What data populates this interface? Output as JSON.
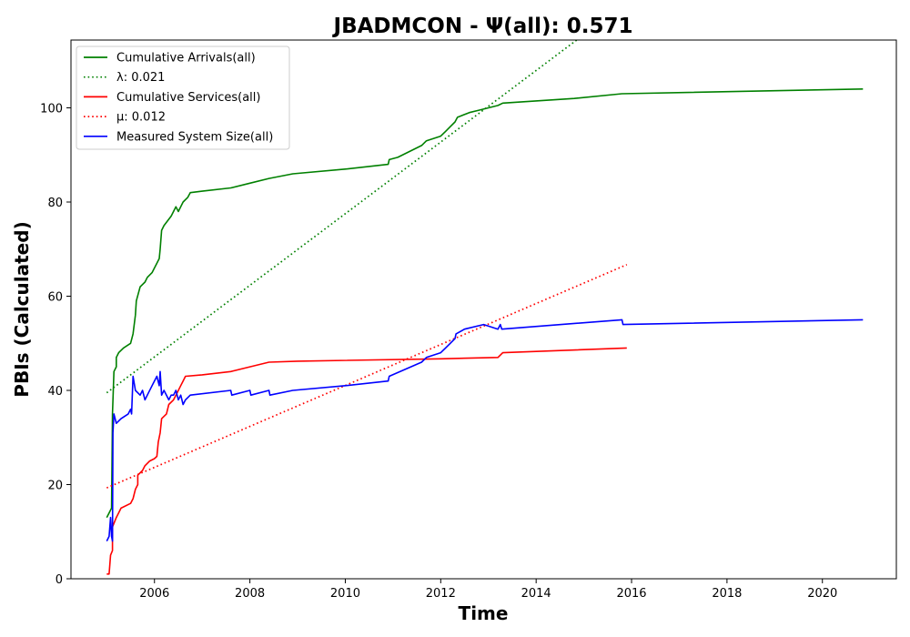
{
  "chart_data": {
    "type": "line",
    "title": "JBADMCON -  Ψ(all): 0.571",
    "xlabel": "Time",
    "ylabel": "PBIs (Calculated)",
    "xlim": [
      2004.25,
      2021.55
    ],
    "ylim": [
      0,
      114.4
    ],
    "x_ticks": [
      2006,
      2008,
      2010,
      2012,
      2014,
      2016,
      2018,
      2020
    ],
    "y_ticks": [
      0,
      20,
      40,
      60,
      80,
      100
    ],
    "grid": false,
    "legend_placement": "upper-left",
    "series": [
      {
        "name": "Cumulative Arrivals(all)",
        "style": "solid",
        "color": "#008000",
        "points": [
          [
            2005.0,
            13
          ],
          [
            2005.1,
            15
          ],
          [
            2005.12,
            35
          ],
          [
            2005.15,
            44
          ],
          [
            2005.2,
            45
          ],
          [
            2005.2,
            47
          ],
          [
            2005.25,
            48
          ],
          [
            2005.35,
            49
          ],
          [
            2005.5,
            50
          ],
          [
            2005.55,
            52
          ],
          [
            2005.6,
            56
          ],
          [
            2005.62,
            59
          ],
          [
            2005.7,
            62
          ],
          [
            2005.8,
            63
          ],
          [
            2005.85,
            64
          ],
          [
            2005.95,
            65
          ],
          [
            2006.0,
            66
          ],
          [
            2006.05,
            67
          ],
          [
            2006.1,
            68
          ],
          [
            2006.12,
            70
          ],
          [
            2006.15,
            74
          ],
          [
            2006.2,
            75
          ],
          [
            2006.35,
            77
          ],
          [
            2006.4,
            78
          ],
          [
            2006.45,
            79
          ],
          [
            2006.5,
            78
          ],
          [
            2006.55,
            79
          ],
          [
            2006.6,
            80
          ],
          [
            2006.7,
            81
          ],
          [
            2006.75,
            82
          ],
          [
            2007.0,
            82.3
          ],
          [
            2007.6,
            83
          ],
          [
            2008.0,
            84
          ],
          [
            2008.4,
            85
          ],
          [
            2008.9,
            86
          ],
          [
            2010.0,
            87
          ],
          [
            2010.9,
            88
          ],
          [
            2010.92,
            89
          ],
          [
            2011.1,
            89.5
          ],
          [
            2011.6,
            92
          ],
          [
            2011.7,
            93
          ],
          [
            2012.0,
            94
          ],
          [
            2012.1,
            95
          ],
          [
            2012.2,
            96
          ],
          [
            2012.3,
            97
          ],
          [
            2012.35,
            98
          ],
          [
            2012.6,
            99
          ],
          [
            2012.8,
            99.5
          ],
          [
            2013.2,
            100.5
          ],
          [
            2013.3,
            101
          ],
          [
            2014.8,
            102
          ],
          [
            2015.8,
            103
          ],
          [
            2020.85,
            104
          ]
        ]
      },
      {
        "name": "λ: 0.021",
        "style": "dotted",
        "color": "#008000",
        "points": [
          [
            2005.0,
            39.5
          ],
          [
            2014.85,
            114.4
          ]
        ]
      },
      {
        "name": "Cumulative Services(all)",
        "style": "solid",
        "color": "#ff0000",
        "points": [
          [
            2005.0,
            1
          ],
          [
            2005.05,
            1
          ],
          [
            2005.08,
            5
          ],
          [
            2005.12,
            6
          ],
          [
            2005.12,
            11
          ],
          [
            2005.2,
            13
          ],
          [
            2005.25,
            14
          ],
          [
            2005.3,
            15
          ],
          [
            2005.5,
            16
          ],
          [
            2005.55,
            17
          ],
          [
            2005.6,
            19
          ],
          [
            2005.65,
            20
          ],
          [
            2005.65,
            22
          ],
          [
            2005.75,
            23
          ],
          [
            2005.8,
            24
          ],
          [
            2005.9,
            25
          ],
          [
            2006.0,
            25.5
          ],
          [
            2006.05,
            26
          ],
          [
            2006.08,
            29
          ],
          [
            2006.12,
            31
          ],
          [
            2006.15,
            34
          ],
          [
            2006.25,
            35
          ],
          [
            2006.3,
            37
          ],
          [
            2006.4,
            38
          ],
          [
            2006.5,
            40
          ],
          [
            2006.55,
            41
          ],
          [
            2006.6,
            42
          ],
          [
            2006.65,
            43
          ],
          [
            2007.0,
            43.3
          ],
          [
            2007.6,
            44
          ],
          [
            2008.0,
            45
          ],
          [
            2008.4,
            46
          ],
          [
            2009.0,
            46.2
          ],
          [
            2012.0,
            46.7
          ],
          [
            2013.2,
            47
          ],
          [
            2013.3,
            48
          ],
          [
            2015.9,
            49
          ]
        ]
      },
      {
        "name": "μ: 0.012",
        "style": "dotted",
        "color": "#ff0000",
        "points": [
          [
            2005.0,
            19.3
          ],
          [
            2015.9,
            66.7
          ]
        ]
      },
      {
        "name": "Measured System Size(all)",
        "style": "solid",
        "color": "#0000ff",
        "points": [
          [
            2005.0,
            8
          ],
          [
            2005.05,
            9
          ],
          [
            2005.08,
            13
          ],
          [
            2005.1,
            9
          ],
          [
            2005.12,
            8
          ],
          [
            2005.13,
            31
          ],
          [
            2005.15,
            35
          ],
          [
            2005.2,
            33
          ],
          [
            2005.3,
            34
          ],
          [
            2005.45,
            35
          ],
          [
            2005.5,
            36
          ],
          [
            2005.52,
            35
          ],
          [
            2005.55,
            43
          ],
          [
            2005.6,
            40
          ],
          [
            2005.7,
            39
          ],
          [
            2005.75,
            40
          ],
          [
            2005.8,
            38
          ],
          [
            2005.85,
            39
          ],
          [
            2005.95,
            41
          ],
          [
            2006.0,
            42
          ],
          [
            2006.05,
            43
          ],
          [
            2006.1,
            41
          ],
          [
            2006.12,
            44
          ],
          [
            2006.15,
            39
          ],
          [
            2006.2,
            40
          ],
          [
            2006.25,
            39
          ],
          [
            2006.3,
            38
          ],
          [
            2006.35,
            39
          ],
          [
            2006.4,
            39
          ],
          [
            2006.45,
            40
          ],
          [
            2006.5,
            38
          ],
          [
            2006.55,
            39
          ],
          [
            2006.6,
            37
          ],
          [
            2006.65,
            38
          ],
          [
            2006.75,
            39
          ],
          [
            2007.6,
            40
          ],
          [
            2007.62,
            39
          ],
          [
            2008.0,
            40
          ],
          [
            2008.02,
            39
          ],
          [
            2008.4,
            40
          ],
          [
            2008.42,
            39
          ],
          [
            2008.9,
            40
          ],
          [
            2010.0,
            41
          ],
          [
            2010.9,
            42
          ],
          [
            2010.92,
            43
          ],
          [
            2011.6,
            46
          ],
          [
            2011.7,
            47
          ],
          [
            2012.0,
            48
          ],
          [
            2012.1,
            49
          ],
          [
            2012.2,
            50
          ],
          [
            2012.3,
            51
          ],
          [
            2012.32,
            52
          ],
          [
            2012.5,
            53
          ],
          [
            2012.9,
            54
          ],
          [
            2013.2,
            53
          ],
          [
            2013.25,
            54
          ],
          [
            2013.28,
            53
          ],
          [
            2015.8,
            55
          ],
          [
            2015.82,
            54
          ],
          [
            2020.85,
            55
          ]
        ]
      }
    ]
  }
}
